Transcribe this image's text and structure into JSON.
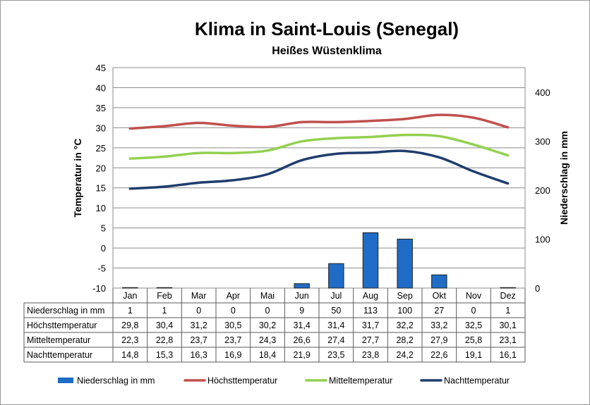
{
  "chart_data": {
    "type": "bar",
    "title": "Klima in Saint-Louis (Senegal)",
    "subtitle": "Heißes Wüstenklima",
    "ylabel_left": "Temperatur in °C",
    "ylabel_right": "Niederschlag in mm",
    "ylim_left": [
      -10,
      45
    ],
    "ylim_right": [
      0,
      450
    ],
    "yticks_left": [
      "-10",
      "-5",
      "0",
      "5",
      "10",
      "15",
      "20",
      "25",
      "30",
      "35",
      "40",
      "45"
    ],
    "yticks_right": [
      "0",
      "100",
      "200",
      "300",
      "400"
    ],
    "grid": true,
    "legend_position": "bottom",
    "categories": [
      "Jan",
      "Feb",
      "Mar",
      "Apr",
      "Mai",
      "Jun",
      "Jul",
      "Aug",
      "Sep",
      "Okt",
      "Nov",
      "Dez"
    ],
    "series": [
      {
        "name": "Niederschlag in mm",
        "type": "bar",
        "axis": "right",
        "color": "#1f6cc7",
        "values": [
          1,
          1,
          0,
          0,
          0,
          9,
          50,
          113,
          100,
          27,
          0,
          1
        ],
        "labels": [
          "1",
          "1",
          "0",
          "0",
          "0",
          "9",
          "50",
          "113",
          "100",
          "27",
          "0",
          "1"
        ]
      },
      {
        "name": "Höchsttemperatur",
        "type": "line",
        "axis": "left",
        "color": "#c0504d",
        "values": [
          29.8,
          30.4,
          31.2,
          30.5,
          30.2,
          31.4,
          31.4,
          31.7,
          32.2,
          33.2,
          32.5,
          30.1
        ],
        "labels": [
          "29,8",
          "30,4",
          "31,2",
          "30,5",
          "30,2",
          "31,4",
          "31,4",
          "31,7",
          "32,2",
          "33,2",
          "32,5",
          "30,1"
        ]
      },
      {
        "name": "Mitteltemperatur",
        "type": "line",
        "axis": "left",
        "color": "#92d050",
        "values": [
          22.3,
          22.8,
          23.7,
          23.7,
          24.3,
          26.6,
          27.4,
          27.7,
          28.2,
          27.9,
          25.8,
          23.1
        ],
        "labels": [
          "22,3",
          "22,8",
          "23,7",
          "23,7",
          "24,3",
          "26,6",
          "27,4",
          "27,7",
          "28,2",
          "27,9",
          "25,8",
          "23,1"
        ]
      },
      {
        "name": "Nachttemperatur",
        "type": "line",
        "axis": "left",
        "color": "#1f3d6e",
        "values": [
          14.8,
          15.3,
          16.3,
          16.9,
          18.4,
          21.9,
          23.5,
          23.8,
          24.2,
          22.6,
          19.1,
          16.1
        ],
        "labels": [
          "14,8",
          "15,3",
          "16,3",
          "16,9",
          "18,4",
          "21,9",
          "23,5",
          "23,8",
          "24,2",
          "22,6",
          "19,1",
          "16,1"
        ]
      }
    ]
  }
}
